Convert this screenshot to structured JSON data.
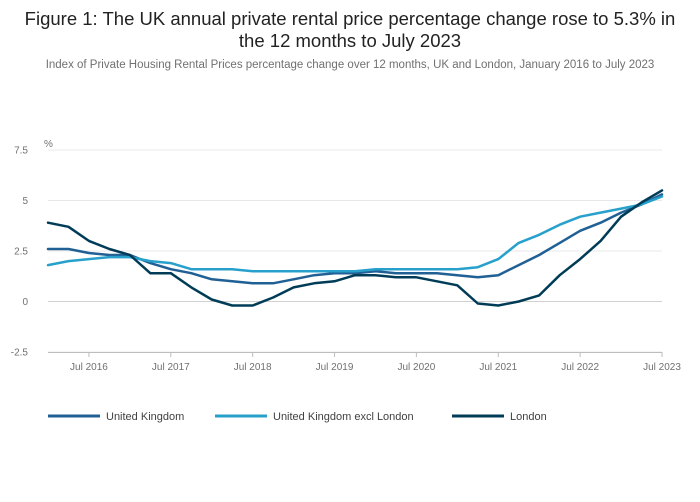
{
  "title": "Figure 1: The UK annual private rental price percentage change rose to 5.3% in the 12 months to July 2023",
  "subtitle": "Index of Private Housing Rental Prices percentage change over 12 months, UK and London, January 2016 to July 2023",
  "chart_data": {
    "type": "line",
    "ylabel": "%",
    "ylim": [
      -2.5,
      7.5
    ],
    "yticks": [
      "-2.5",
      "0",
      "2.5",
      "5",
      "7.5"
    ],
    "xlim": [
      "2016-01",
      "2023-07"
    ],
    "xticks": [
      {
        "label": "Jul 2016",
        "date": "2016-07"
      },
      {
        "label": "Jul 2017",
        "date": "2017-07"
      },
      {
        "label": "Jul 2018",
        "date": "2018-07"
      },
      {
        "label": "Jul 2019",
        "date": "2019-07"
      },
      {
        "label": "Jul 2020",
        "date": "2020-07"
      },
      {
        "label": "Jul 2021",
        "date": "2021-07"
      },
      {
        "label": "Jul 2022",
        "date": "2022-07"
      },
      {
        "label": "Jul 2023",
        "date": "2023-07"
      }
    ],
    "grid": true,
    "legend_position": "bottom",
    "x": [
      "2016-01",
      "2016-04",
      "2016-07",
      "2016-10",
      "2017-01",
      "2017-04",
      "2017-07",
      "2017-10",
      "2018-01",
      "2018-04",
      "2018-07",
      "2018-10",
      "2019-01",
      "2019-04",
      "2019-07",
      "2019-10",
      "2020-01",
      "2020-04",
      "2020-07",
      "2020-10",
      "2021-01",
      "2021-04",
      "2021-07",
      "2021-10",
      "2022-01",
      "2022-04",
      "2022-07",
      "2022-10",
      "2023-01",
      "2023-04",
      "2023-07"
    ],
    "series": [
      {
        "name": "United Kingdom",
        "color": "#206095",
        "values": [
          2.6,
          2.6,
          2.4,
          2.3,
          2.3,
          1.9,
          1.6,
          1.4,
          1.1,
          1.0,
          0.9,
          0.9,
          1.1,
          1.3,
          1.4,
          1.4,
          1.5,
          1.4,
          1.4,
          1.4,
          1.3,
          1.2,
          1.3,
          1.8,
          2.3,
          2.9,
          3.5,
          3.9,
          4.4,
          4.8,
          5.3
        ]
      },
      {
        "name": "United Kingdom excl London",
        "color": "#27a0cc",
        "values": [
          1.8,
          2.0,
          2.1,
          2.2,
          2.2,
          2.0,
          1.9,
          1.6,
          1.6,
          1.6,
          1.5,
          1.5,
          1.5,
          1.5,
          1.5,
          1.5,
          1.6,
          1.6,
          1.6,
          1.6,
          1.6,
          1.7,
          2.1,
          2.9,
          3.3,
          3.8,
          4.2,
          4.4,
          4.6,
          4.8,
          5.2
        ]
      },
      {
        "name": "London",
        "color": "#003c57",
        "values": [
          3.9,
          3.7,
          3.0,
          2.6,
          2.3,
          1.4,
          1.4,
          0.7,
          0.1,
          -0.2,
          -0.2,
          0.2,
          0.7,
          0.9,
          1.0,
          1.3,
          1.3,
          1.2,
          1.2,
          1.0,
          0.8,
          -0.1,
          -0.2,
          0.0,
          0.3,
          1.3,
          2.1,
          3.0,
          4.2,
          4.9,
          5.5
        ]
      }
    ]
  }
}
